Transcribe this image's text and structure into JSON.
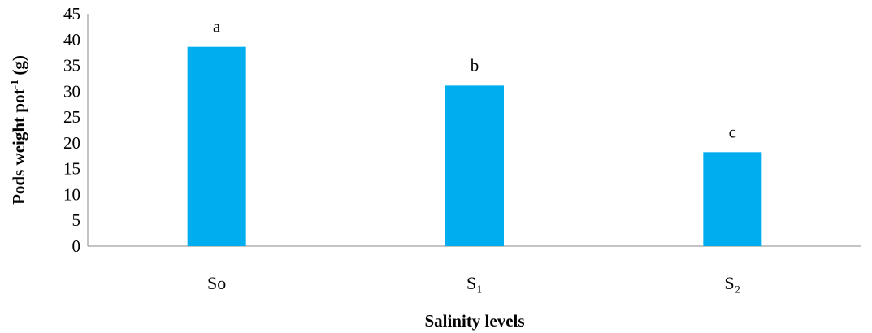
{
  "chart_data": {
    "type": "bar",
    "categories": [
      "So",
      "S₁",
      "S₂"
    ],
    "values": [
      38.6,
      31.1,
      18.2
    ],
    "data_labels": [
      "a",
      "b",
      "c"
    ],
    "ylabel": "Pods weight pot",
    "ylabel_superscript": "-1",
    "ylabel_suffix": " (g)",
    "xlabel": "Salinity levels",
    "ylim": [
      0,
      45
    ],
    "yticks": [
      0,
      5,
      10,
      15,
      20,
      25,
      30,
      35,
      40,
      45
    ],
    "bar_color": "#00AEEF",
    "grid": false,
    "legend": "none"
  }
}
